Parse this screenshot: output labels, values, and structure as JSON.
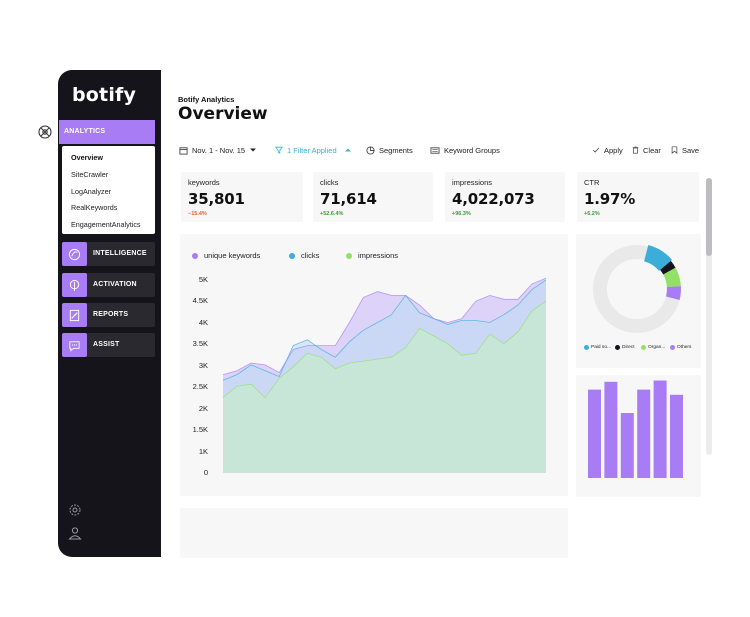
{
  "app": {
    "logo": "botify"
  },
  "sidebar": {
    "active_section": "ANALYTICS",
    "submenu": [
      "Overview",
      "SiteCrawler",
      "LogAnalyzer",
      "RealKeywords",
      "EngagementAnalytics"
    ],
    "items": [
      {
        "label": "INTELLIGENCE",
        "icon": "sparkle-icon"
      },
      {
        "label": "ACTIVATION",
        "icon": "rocket-icon"
      },
      {
        "label": "REPORTS",
        "icon": "document-icon"
      },
      {
        "label": "ASSIST",
        "icon": "chat-icon"
      }
    ],
    "accent": "#a87cf5"
  },
  "header": {
    "subtitle": "Botify Analytics",
    "title": "Overview"
  },
  "toolbar": {
    "date_range": "Nov. 1 - Nov. 15",
    "filter": "1 Filter Applied",
    "segments": "Segments",
    "keyword_groups": "Keyword Groups",
    "apply": "Apply",
    "clear": "Clear",
    "save": "Save"
  },
  "kpis": [
    {
      "label": "keywords",
      "value": "35,801",
      "delta": "−15.4%",
      "trend": "down"
    },
    {
      "label": "clicks",
      "value": "71,614",
      "delta": "+52.6.4%",
      "trend": "up"
    },
    {
      "label": "impressions",
      "value": "4,022,073",
      "delta": "+96.3%",
      "trend": "up"
    },
    {
      "label": "CTR",
      "value": "1.97%",
      "delta": "+6.2%",
      "trend": "up"
    }
  ],
  "chart_data": [
    {
      "type": "area",
      "series": [
        {
          "name": "unique keywords",
          "color": "#a87cf5",
          "values": [
            2.55,
            2.65,
            2.85,
            2.8,
            2.6,
            3.2,
            3.3,
            3.3,
            3.3,
            3.9,
            4.55,
            4.7,
            4.6,
            4.6,
            4.35,
            4.0,
            3.9,
            4.0,
            4.45,
            4.6,
            4.5,
            4.5,
            4.9,
            5.05
          ]
        },
        {
          "name": "clicks",
          "color": "#3aaed8",
          "values": [
            2.4,
            2.55,
            2.8,
            2.65,
            2.5,
            3.3,
            3.45,
            3.2,
            3.0,
            3.4,
            3.7,
            3.9,
            4.1,
            4.6,
            4.15,
            4.0,
            3.85,
            3.95,
            3.95,
            3.9,
            4.1,
            4.35,
            4.75,
            5.0
          ]
        },
        {
          "name": "impressions",
          "color": "#93e066",
          "values": [
            1.95,
            2.25,
            2.3,
            1.95,
            2.45,
            2.75,
            3.1,
            3.0,
            2.7,
            2.85,
            2.9,
            2.95,
            3.0,
            3.25,
            3.75,
            3.55,
            3.35,
            3.05,
            3.1,
            3.6,
            3.35,
            3.65,
            4.2,
            4.45
          ]
        }
      ],
      "y_ticks": [
        "5K",
        "4.5K",
        "4K",
        "3.5K",
        "3K",
        "2.5K",
        "2K",
        "1.5K",
        "1K",
        "0"
      ],
      "ylim": [
        0,
        5000
      ]
    },
    {
      "type": "pie",
      "slices": [
        {
          "name": "Paid so...",
          "value": 10,
          "color": "#3aaed8"
        },
        {
          "name": "Direct",
          "value": 3,
          "color": "#15141a"
        },
        {
          "name": "Organ...",
          "value": 7,
          "color": "#93e066"
        },
        {
          "name": "Others",
          "value": 5,
          "color": "#a87cf5"
        },
        {
          "name": "",
          "value": 75,
          "color": "#e9e9ea"
        }
      ]
    },
    {
      "type": "bar",
      "color": "#a87cf5",
      "values": [
        0.68,
        0.74,
        0.5,
        0.68,
        0.75,
        0.64
      ],
      "ylim": [
        0,
        1
      ]
    }
  ]
}
